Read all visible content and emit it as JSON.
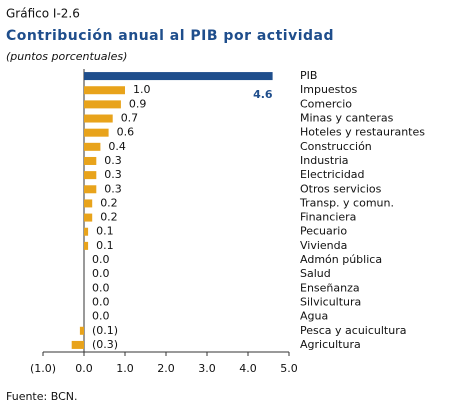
{
  "chart_data": {
    "type": "barh",
    "label": "Gráfico I-2.6",
    "title": "Contribución anual al PIB por actividad",
    "subtitle": "(puntos porcentuales)",
    "source": "Fuente: BCN.",
    "categories": [
      "PIB",
      "Impuestos",
      "Comercio",
      "Minas y canteras",
      "Hoteles y restaurantes",
      "Construcción",
      "Industria",
      "Electricidad",
      "Otros servicios",
      "Transp. y comun.",
      "Financiera",
      "Pecuario",
      "Vivienda",
      "Admón pública",
      "Salud",
      "Enseñanza",
      "Silvicultura",
      "Agua",
      "Pesca y acuicultura",
      "Agricultura"
    ],
    "values": [
      4.6,
      1.0,
      0.9,
      0.7,
      0.6,
      0.4,
      0.3,
      0.3,
      0.3,
      0.2,
      0.2,
      0.1,
      0.1,
      0,
      0,
      0,
      0,
      0,
      -0.1,
      -0.3
    ],
    "value_labels": [
      "4.6",
      "1.0",
      "0.9",
      "0.7",
      "0.6",
      "0.4",
      "0.3",
      "0.3",
      "0.3",
      "0.2",
      "0.2",
      "0.1",
      "0.1",
      "0.0",
      "0.0",
      "0.0",
      "0.0",
      "0.0",
      "(0.1)",
      "(0.3)"
    ],
    "colors": [
      "#1f4e8c",
      "#e8a31b",
      "#e8a31b",
      "#e8a31b",
      "#e8a31b",
      "#e8a31b",
      "#e8a31b",
      "#e8a31b",
      "#e8a31b",
      "#e8a31b",
      "#e8a31b",
      "#e8a31b",
      "#e8a31b",
      "#e8a31b",
      "#e8a31b",
      "#e8a31b",
      "#e8a31b",
      "#e8a31b",
      "#e8a31b",
      "#e8a31b"
    ],
    "xlim": [
      -1,
      5
    ],
    "xticks": [
      {
        "value": -1,
        "label": "(1.0)"
      },
      {
        "value": 0,
        "label": "0.0"
      },
      {
        "value": 1,
        "label": "1.0"
      },
      {
        "value": 2,
        "label": "2.0"
      },
      {
        "value": 3,
        "label": "3.0"
      },
      {
        "value": 4,
        "label": "4.0"
      },
      {
        "value": 5,
        "label": "5.0"
      }
    ]
  }
}
